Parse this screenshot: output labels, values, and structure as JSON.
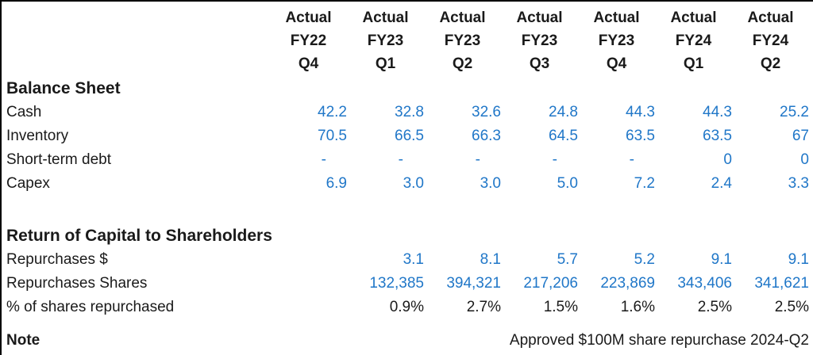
{
  "colors": {
    "value_blue": "#2077c8",
    "text_ink": "#1a1a1a"
  },
  "table": {
    "columns": [
      {
        "scenario": "Actual",
        "fy": "FY22",
        "q": "Q4"
      },
      {
        "scenario": "Actual",
        "fy": "FY23",
        "q": "Q1"
      },
      {
        "scenario": "Actual",
        "fy": "FY23",
        "q": "Q2"
      },
      {
        "scenario": "Actual",
        "fy": "FY23",
        "q": "Q3"
      },
      {
        "scenario": "Actual",
        "fy": "FY23",
        "q": "Q4"
      },
      {
        "scenario": "Actual",
        "fy": "FY24",
        "q": "Q1"
      },
      {
        "scenario": "Actual",
        "fy": "FY24",
        "q": "Q2"
      }
    ],
    "sections": [
      {
        "title": "Balance Sheet",
        "rows": [
          {
            "label": "Cash",
            "values": [
              "42.2",
              "32.8",
              "32.6",
              "24.8",
              "44.3",
              "44.3",
              "25.2"
            ]
          },
          {
            "label": "Inventory",
            "values": [
              "70.5",
              "66.5",
              "66.3",
              "64.5",
              "63.5",
              "63.5",
              "67"
            ]
          },
          {
            "label": "Short-term debt",
            "values": [
              "-",
              "-",
              "-",
              "-",
              "-",
              "0",
              "0"
            ]
          },
          {
            "label": "Capex",
            "values": [
              "6.9",
              "3.0",
              "3.0",
              "5.0",
              "7.2",
              "2.4",
              "3.3"
            ]
          }
        ]
      },
      {
        "title": "Return of Capital to Shareholders",
        "rows": [
          {
            "label": "Repurchases $",
            "values": [
              "",
              "3.1",
              "8.1",
              "5.7",
              "5.2",
              "9.1",
              "9.1"
            ]
          },
          {
            "label": "Repurchases Shares",
            "values": [
              "",
              "132,385",
              "394,321",
              "217,206",
              "223,869",
              "343,406",
              "341,621"
            ]
          },
          {
            "label": "% of shares repurchased",
            "values": [
              "",
              "0.9%",
              "2.7%",
              "1.5%",
              "1.6%",
              "2.5%",
              "2.5%"
            ]
          }
        ]
      }
    ],
    "note": {
      "label": "Note",
      "text": "Approved $100M share repurchase 2024-Q2"
    }
  }
}
